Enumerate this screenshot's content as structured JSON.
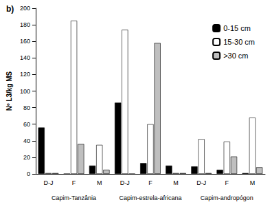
{
  "chart_data": {
    "type": "bar",
    "title": "b)",
    "y_label": "Nº L3/kg MS",
    "categories": [
      "D-J",
      "F",
      "M",
      "D-J",
      "F",
      "M",
      "D-J",
      "F",
      "M"
    ],
    "category_groups": [
      "Capim-Tanzânia",
      "Capim-estrela-africana",
      "Capim-andropógon"
    ],
    "series": [
      {
        "name": "0-15 cm",
        "color": "#000000",
        "values": [
          56,
          0,
          10,
          86,
          13,
          10,
          9,
          5,
          1
        ]
      },
      {
        "name": "15-30 cm",
        "color": "#ffffff",
        "values": [
          1,
          185,
          35,
          174,
          60,
          1,
          42,
          39,
          68
        ]
      },
      {
        "name": ">30 cm",
        "color": "#bfbfbf",
        "values": [
          1,
          36,
          5,
          0,
          158,
          1,
          1,
          21,
          8
        ]
      }
    ],
    "ylim": [
      0,
      200
    ],
    "yticks": [
      0,
      20,
      40,
      60,
      80,
      100,
      120,
      140,
      160,
      180,
      200
    ],
    "grid": false,
    "legend": "top-right"
  }
}
